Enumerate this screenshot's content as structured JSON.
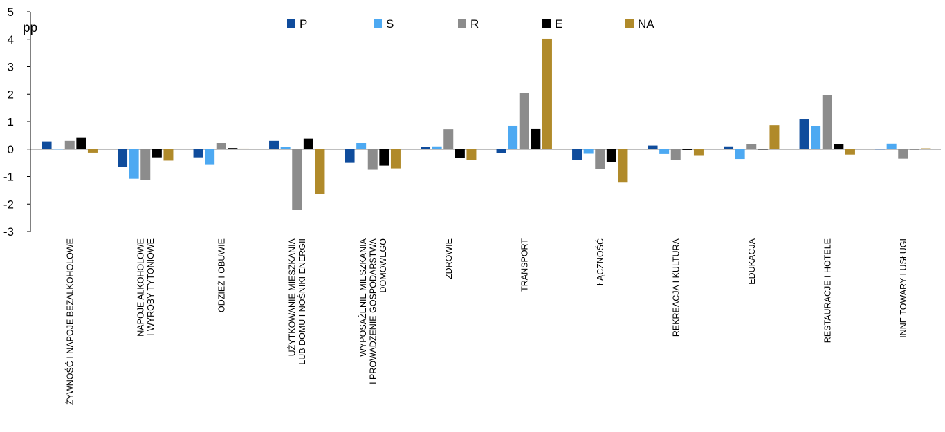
{
  "chart_data": {
    "type": "bar",
    "unit_label": "pp",
    "ylim": [
      -3,
      5
    ],
    "yticks": [
      5,
      4,
      3,
      2,
      1,
      0,
      -1,
      -2,
      -3
    ],
    "grid": false,
    "legend_position": "top",
    "categories": [
      "ŻYWNOŚĆ I NAPOJE BEZALKOHOLOWE",
      "NAPOJE ALKOHOLOWE\nI WYROBY TYTONIOWE",
      "ODZIEŻ I OBUWIE",
      "UŻYTKOWANIE MIESZKANIA\nLUB DOMU I NOŚNIKI ENERGII",
      "WYPOSAŻENIE MIESZKANIA\nI PROWADZENIE GOSPODARSTWA\nDOMOWEGO",
      "ZDROWIE",
      "TRANSPORT",
      "ŁĄCZNOŚĆ",
      "REKREACJA I KULTURA",
      "EDUKACJA",
      "RESTAURACJE I HOTELE",
      "INNE TOWARY I USŁUGI"
    ],
    "series": [
      {
        "name": "P",
        "color": "#0f4c9c",
        "values": [
          0.28,
          -0.65,
          -0.3,
          0.3,
          -0.5,
          0.07,
          -0.15,
          -0.4,
          0.13,
          0.1,
          1.1,
          0.0
        ]
      },
      {
        "name": "S",
        "color": "#4da9f2",
        "values": [
          0.0,
          -1.08,
          -0.55,
          0.08,
          0.22,
          0.1,
          0.85,
          -0.17,
          -0.18,
          -0.36,
          0.84,
          0.2
        ]
      },
      {
        "name": "R",
        "color": "#8c8c8c",
        "values": [
          0.3,
          -1.12,
          0.22,
          -2.22,
          -0.75,
          0.72,
          2.05,
          -0.72,
          -0.4,
          0.18,
          1.98,
          -0.35
        ]
      },
      {
        "name": "E",
        "color": "#000000",
        "values": [
          0.43,
          -0.3,
          0.04,
          0.38,
          -0.6,
          -0.32,
          0.75,
          -0.48,
          -0.03,
          -0.02,
          0.18,
          0.0
        ]
      },
      {
        "name": "NA",
        "color": "#b08a2a",
        "values": [
          -0.13,
          -0.42,
          0.02,
          -1.62,
          -0.7,
          -0.4,
          4.02,
          -1.22,
          -0.22,
          0.87,
          -0.2,
          0.03
        ]
      }
    ]
  }
}
